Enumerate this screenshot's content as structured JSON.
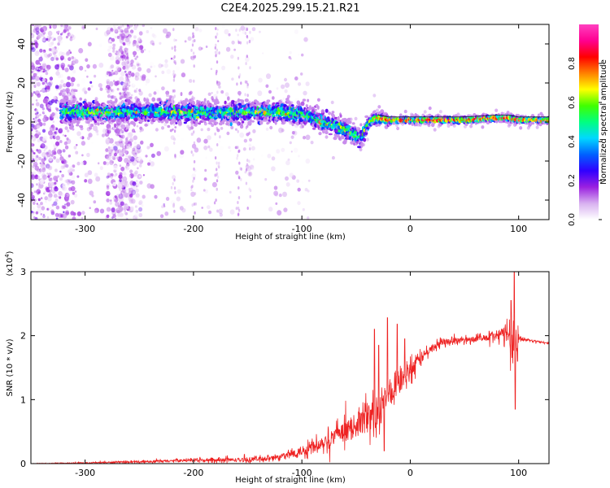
{
  "title": "C2E4.2025.299.15.21.R21",
  "chart_data": [
    {
      "type": "heatmap",
      "name": "spectrogram",
      "title": "C2E4.2025.299.15.21.R21",
      "xlabel": "Height of straight line (km)",
      "ylabel": "Frequency (Hz)",
      "xlim": [
        -350,
        128
      ],
      "ylim": [
        -50,
        50
      ],
      "x_ticks": [
        -300,
        -200,
        -100,
        0,
        100
      ],
      "y_ticks": [
        -40,
        -20,
        0,
        20,
        40
      ],
      "colorbar": {
        "label": "Normalized spectral amplitude",
        "range": [
          0.0,
          1.0
        ],
        "ticks": [
          "0.0",
          "0.2",
          "0.4",
          "0.6",
          "0.8"
        ],
        "colors": [
          "#ffffff",
          "#d8b0f0",
          "#9a20e0",
          "#3000ff",
          "#0060ff",
          "#00d8ff",
          "#00ff80",
          "#40ff00",
          "#ffff00",
          "#ff8000",
          "#ff0000",
          "#ff0090",
          "#ff40c0"
        ]
      },
      "signal_track": {
        "x": [
          -320,
          -300,
          -250,
          -200,
          -150,
          -120,
          -100,
          -80,
          -60,
          -50,
          -45,
          -40,
          -35,
          -30,
          -20,
          -10,
          0,
          20,
          50,
          80,
          90,
          100,
          128
        ],
        "frequency_hz": [
          5,
          5,
          5,
          5,
          5,
          5,
          4,
          0,
          -4,
          -7,
          -8,
          -2,
          1,
          2,
          1,
          1,
          1,
          1,
          1,
          2,
          2,
          1,
          1
        ],
        "amplitude": [
          0.5,
          0.55,
          0.5,
          0.55,
          0.5,
          0.6,
          0.5,
          0.55,
          0.6,
          0.55,
          0.4,
          0.55,
          0.7,
          0.8,
          0.85,
          0.85,
          0.9,
          0.9,
          0.9,
          0.85,
          0.85,
          0.8,
          0.85
        ]
      }
    },
    {
      "type": "line",
      "name": "snr",
      "xlabel": "Height of straight line (km)",
      "ylabel": "SNR (10 * v/v)",
      "y_multiplier": "(x10",
      "y_multiplier_exp": "4",
      "y_multiplier_close": ")",
      "xlim": [
        -350,
        128
      ],
      "ylim": [
        0,
        3
      ],
      "x_ticks": [
        -300,
        -200,
        -100,
        0,
        100
      ],
      "y_ticks": [
        0,
        1,
        2,
        3
      ],
      "color": "#ee2222",
      "envelope": {
        "x": [
          -350,
          -300,
          -250,
          -200,
          -150,
          -120,
          -100,
          -80,
          -60,
          -40,
          -30,
          -20,
          -10,
          0,
          10,
          20,
          30,
          40,
          60,
          80,
          90,
          95,
          100,
          110,
          128
        ],
        "y": [
          0.0,
          0.01,
          0.03,
          0.05,
          0.06,
          0.1,
          0.2,
          0.35,
          0.5,
          0.7,
          0.8,
          1.05,
          1.25,
          1.45,
          1.65,
          1.8,
          1.9,
          1.92,
          1.95,
          2.0,
          2.05,
          2.0,
          1.95,
          1.93,
          1.88
        ]
      },
      "noise_amp": {
        "x": [
          -350,
          -200,
          -120,
          -100,
          -60,
          -40,
          -30,
          -20,
          -10,
          0,
          20,
          40,
          60,
          80,
          90,
          95,
          100,
          110,
          128
        ],
        "y": [
          0.005,
          0.04,
          0.08,
          0.15,
          0.3,
          0.45,
          0.5,
          0.35,
          0.3,
          0.25,
          0.12,
          0.08,
          0.08,
          0.12,
          0.3,
          1.0,
          0.12,
          0.03,
          0.02
        ]
      },
      "spikes": [
        {
          "x": -33,
          "y": 2.1
        },
        {
          "x": -29,
          "y": 1.85
        },
        {
          "x": -24,
          "y": 0.2
        },
        {
          "x": -21,
          "y": 2.28
        },
        {
          "x": -12,
          "y": 2.18
        },
        {
          "x": -5,
          "y": 1.95
        },
        {
          "x": 93,
          "y": 2.55
        },
        {
          "x": 96,
          "y": 3.0
        },
        {
          "x": 97,
          "y": 0.85
        },
        {
          "x": 99,
          "y": 1.6
        }
      ]
    }
  ]
}
